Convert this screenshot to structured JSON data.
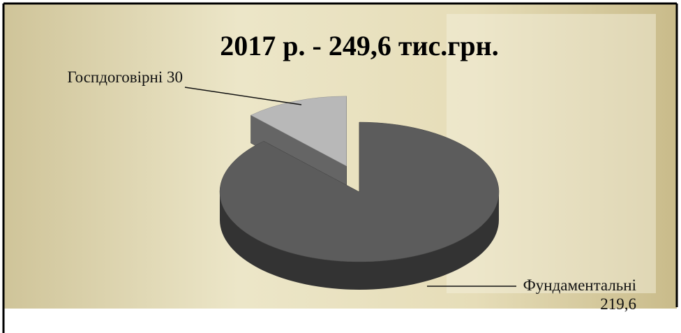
{
  "chart_data": {
    "type": "pie3d",
    "title": "2017 р. - 249,6 тис.грн.",
    "categories": [
      "Госпдоговірні",
      "Фундаментальні"
    ],
    "values": [
      30,
      219.6
    ],
    "value_labels": [
      "30",
      "219,6"
    ],
    "colors": [
      "#b8b8b8",
      "#5c5c5c"
    ]
  }
}
